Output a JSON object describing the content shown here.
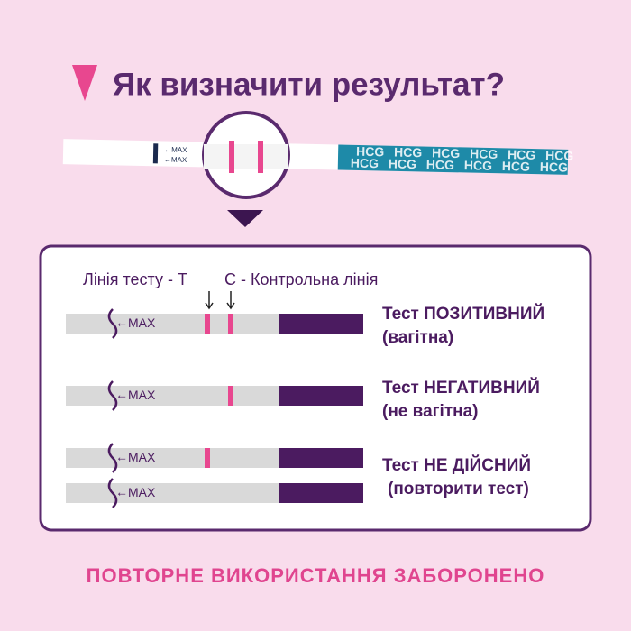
{
  "header": {
    "title": "Як визначити результат?"
  },
  "strip": {
    "max_label": "MAX",
    "brand": "HCG"
  },
  "legend": {
    "test_line": "Лінія тесту - T",
    "control_line": "C - Контрольна лінія"
  },
  "results": [
    {
      "title": "Тест ПОЗИТИВНИЙ",
      "note": "(вагітна)"
    },
    {
      "title": "Тест НЕГАТИВНИЙ",
      "note": "(не вагітна)"
    },
    {
      "title": "Тест НЕ ДІЙСНИЙ",
      "note": "(повторити тест)"
    }
  ],
  "footer": {
    "text": "ПОВТОРНЕ ВИКОРИСТАННЯ ЗАБОРОНЕНО"
  }
}
